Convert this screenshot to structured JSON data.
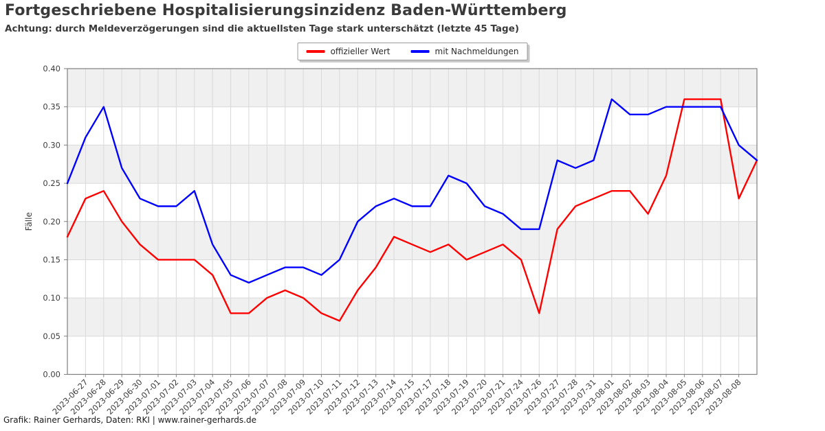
{
  "header": {
    "title": "Fortgeschriebene Hospitalisierungsinzidenz Baden-Württemberg",
    "subtitle": "Achtung: durch Meldeverzögerungen sind die aktuellsten Tage stark unterschätzt (letzte 45 Tage)"
  },
  "legend": [
    {
      "label": "offizieller Wert",
      "color": "#ff0000"
    },
    {
      "label": "mit Nachmeldungen",
      "color": "#0000ff"
    }
  ],
  "footer": {
    "credit": "Grafik: Rainer Gerhards, Daten: RKI | www.rainer-gerhards.de"
  },
  "chart_data": {
    "type": "line",
    "title": "Fortgeschriebene Hospitalisierungsinzidenz Baden-Württemberg",
    "subtitle": "Achtung: durch Meldeverzögerungen sind die aktuellsten Tage stark unterschätzt (letzte 45 Tage)",
    "xlabel": "",
    "ylabel": "Fälle",
    "ylim": [
      0,
      0.4
    ],
    "ytick_step": 0.05,
    "grid": true,
    "legend_position": "top-center",
    "band_color": "#f0f0f0",
    "grid_color": "#d9d9d9",
    "spine_color": "#7f7f7f",
    "tick_color": "#3c3c3c",
    "x_labels": [
      "",
      "2023-06-27",
      "2023-06-28",
      "2023-06-29",
      "2023-06-30",
      "2023-07-01",
      "2023-07-02",
      "2023-07-03",
      "2023-07-04",
      "2023-07-05",
      "2023-07-06",
      "2023-07-07",
      "2023-07-08",
      "2023-07-09",
      "2023-07-10",
      "2023-07-11",
      "2023-07-12",
      "2023-07-13",
      "2023-07-14",
      "2023-07-15",
      "2023-07-17",
      "2023-07-18",
      "2023-07-19",
      "2023-07-20",
      "2023-07-21",
      "2023-07-24",
      "2023-07-26",
      "2023-07-27",
      "2023-07-28",
      "2023-07-31",
      "2023-08-01",
      "2023-08-02",
      "2023-08-03",
      "2023-08-04",
      "2023-08-05",
      "2023-08-06",
      "2023-08-07",
      "2023-08-08",
      ""
    ],
    "series": [
      {
        "key": "offizieller-wert",
        "name": "offizieller Wert",
        "color": "#ff0000",
        "values": [
          0.18,
          0.23,
          0.24,
          0.2,
          0.17,
          0.15,
          0.15,
          0.15,
          0.13,
          0.08,
          0.08,
          0.1,
          0.11,
          0.1,
          0.08,
          0.07,
          0.11,
          0.14,
          0.18,
          0.17,
          0.16,
          0.17,
          0.15,
          0.16,
          0.17,
          0.15,
          0.08,
          0.19,
          0.22,
          0.23,
          0.24,
          0.24,
          0.21,
          0.26,
          0.36,
          0.36,
          0.36,
          0.23,
          0.28
        ]
      },
      {
        "key": "mit-nachmeldungen",
        "name": "mit Nachmeldungen",
        "color": "#0000ff",
        "values": [
          0.25,
          0.31,
          0.35,
          0.27,
          0.23,
          0.22,
          0.22,
          0.24,
          0.17,
          0.13,
          0.12,
          0.13,
          0.14,
          0.14,
          0.13,
          0.15,
          0.2,
          0.22,
          0.23,
          0.22,
          0.22,
          0.26,
          0.25,
          0.22,
          0.21,
          0.19,
          0.19,
          0.28,
          0.27,
          0.28,
          0.36,
          0.34,
          0.34,
          0.35,
          0.35,
          0.35,
          0.35,
          0.3,
          0.28
        ]
      }
    ]
  }
}
